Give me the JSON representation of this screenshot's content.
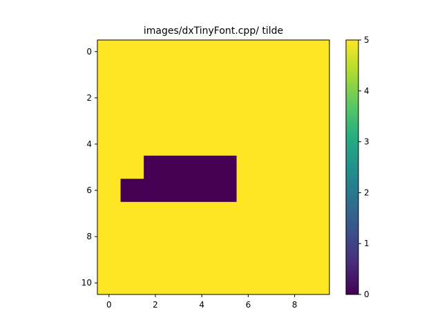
{
  "chart_data": {
    "type": "heatmap",
    "title": "images/dxTinyFont.cpp/ tilde",
    "xlabel": "",
    "ylabel": "",
    "x_ticks": [
      0,
      2,
      4,
      6,
      8
    ],
    "y_ticks": [
      0,
      2,
      4,
      6,
      8,
      10
    ],
    "xlim": [
      -0.5,
      9.5
    ],
    "ylim": [
      10.5,
      -0.5
    ],
    "grid": false,
    "colormap": "viridis",
    "colorbar": {
      "vmin": 0,
      "vmax": 5,
      "ticks": [
        0,
        1,
        2,
        3,
        4,
        5
      ]
    },
    "values": [
      [
        5,
        5,
        5,
        5,
        5,
        5,
        5,
        5,
        5,
        5
      ],
      [
        5,
        5,
        5,
        5,
        5,
        5,
        5,
        5,
        5,
        5
      ],
      [
        5,
        5,
        5,
        5,
        5,
        5,
        5,
        5,
        5,
        5
      ],
      [
        5,
        5,
        5,
        5,
        5,
        5,
        5,
        5,
        5,
        5
      ],
      [
        5,
        5,
        5,
        5,
        5,
        5,
        5,
        5,
        5,
        5
      ],
      [
        5,
        5,
        0,
        0,
        0,
        0,
        5,
        5,
        5,
        5
      ],
      [
        5,
        0,
        0,
        0,
        0,
        0,
        5,
        5,
        5,
        5
      ],
      [
        5,
        5,
        5,
        5,
        5,
        5,
        5,
        5,
        5,
        5
      ],
      [
        5,
        5,
        5,
        5,
        5,
        5,
        5,
        5,
        5,
        5
      ],
      [
        5,
        5,
        5,
        5,
        5,
        5,
        5,
        5,
        5,
        5
      ],
      [
        5,
        5,
        5,
        5,
        5,
        5,
        5,
        5,
        5,
        5
      ]
    ]
  }
}
